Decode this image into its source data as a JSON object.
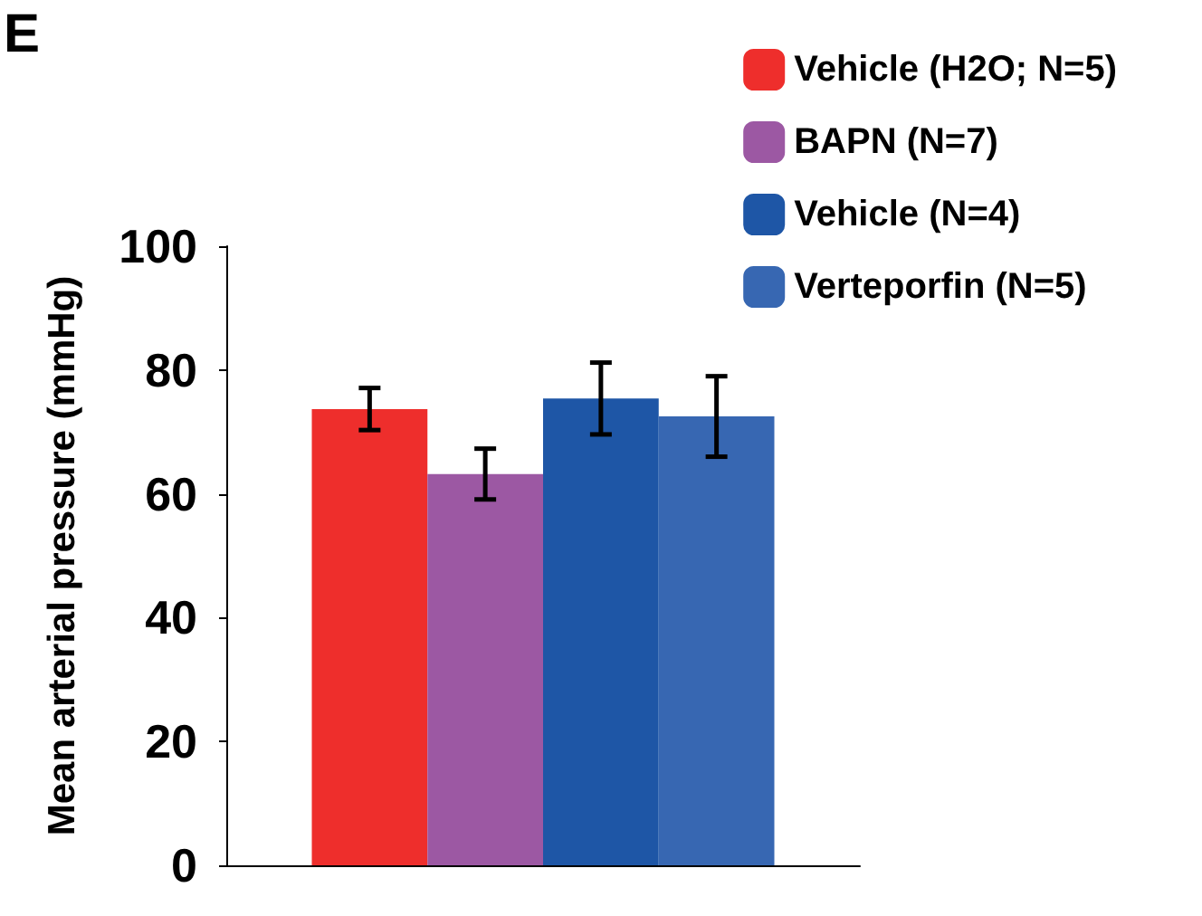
{
  "chart_data": {
    "type": "bar",
    "ylabel": "Mean arterial pressure (mmHg)",
    "annotations": [
      "E"
    ],
    "categories": [
      null
    ],
    "series": [
      {
        "name": "Vehicle (H2O; N=5)",
        "color": "#ee2e2c",
        "values": [
          73.7
        ],
        "errors": [
          3.4
        ]
      },
      {
        "name": "BAPN (N=7)",
        "color": "#9c58a3",
        "values": [
          63.2
        ],
        "errors": [
          4.1
        ]
      },
      {
        "name": "Vehicle (N=4)",
        "color": "#1e56a6",
        "values": [
          75.4
        ],
        "errors": [
          5.8
        ]
      },
      {
        "name": "Verteporfin (N=5)",
        "color": "#3767b2",
        "values": [
          72.5
        ],
        "errors": [
          6.5
        ]
      }
    ],
    "ylim": [
      0,
      100
    ],
    "yticks": [
      0,
      20,
      40,
      60,
      80,
      100
    ],
    "grid": false,
    "legend": "top right"
  }
}
